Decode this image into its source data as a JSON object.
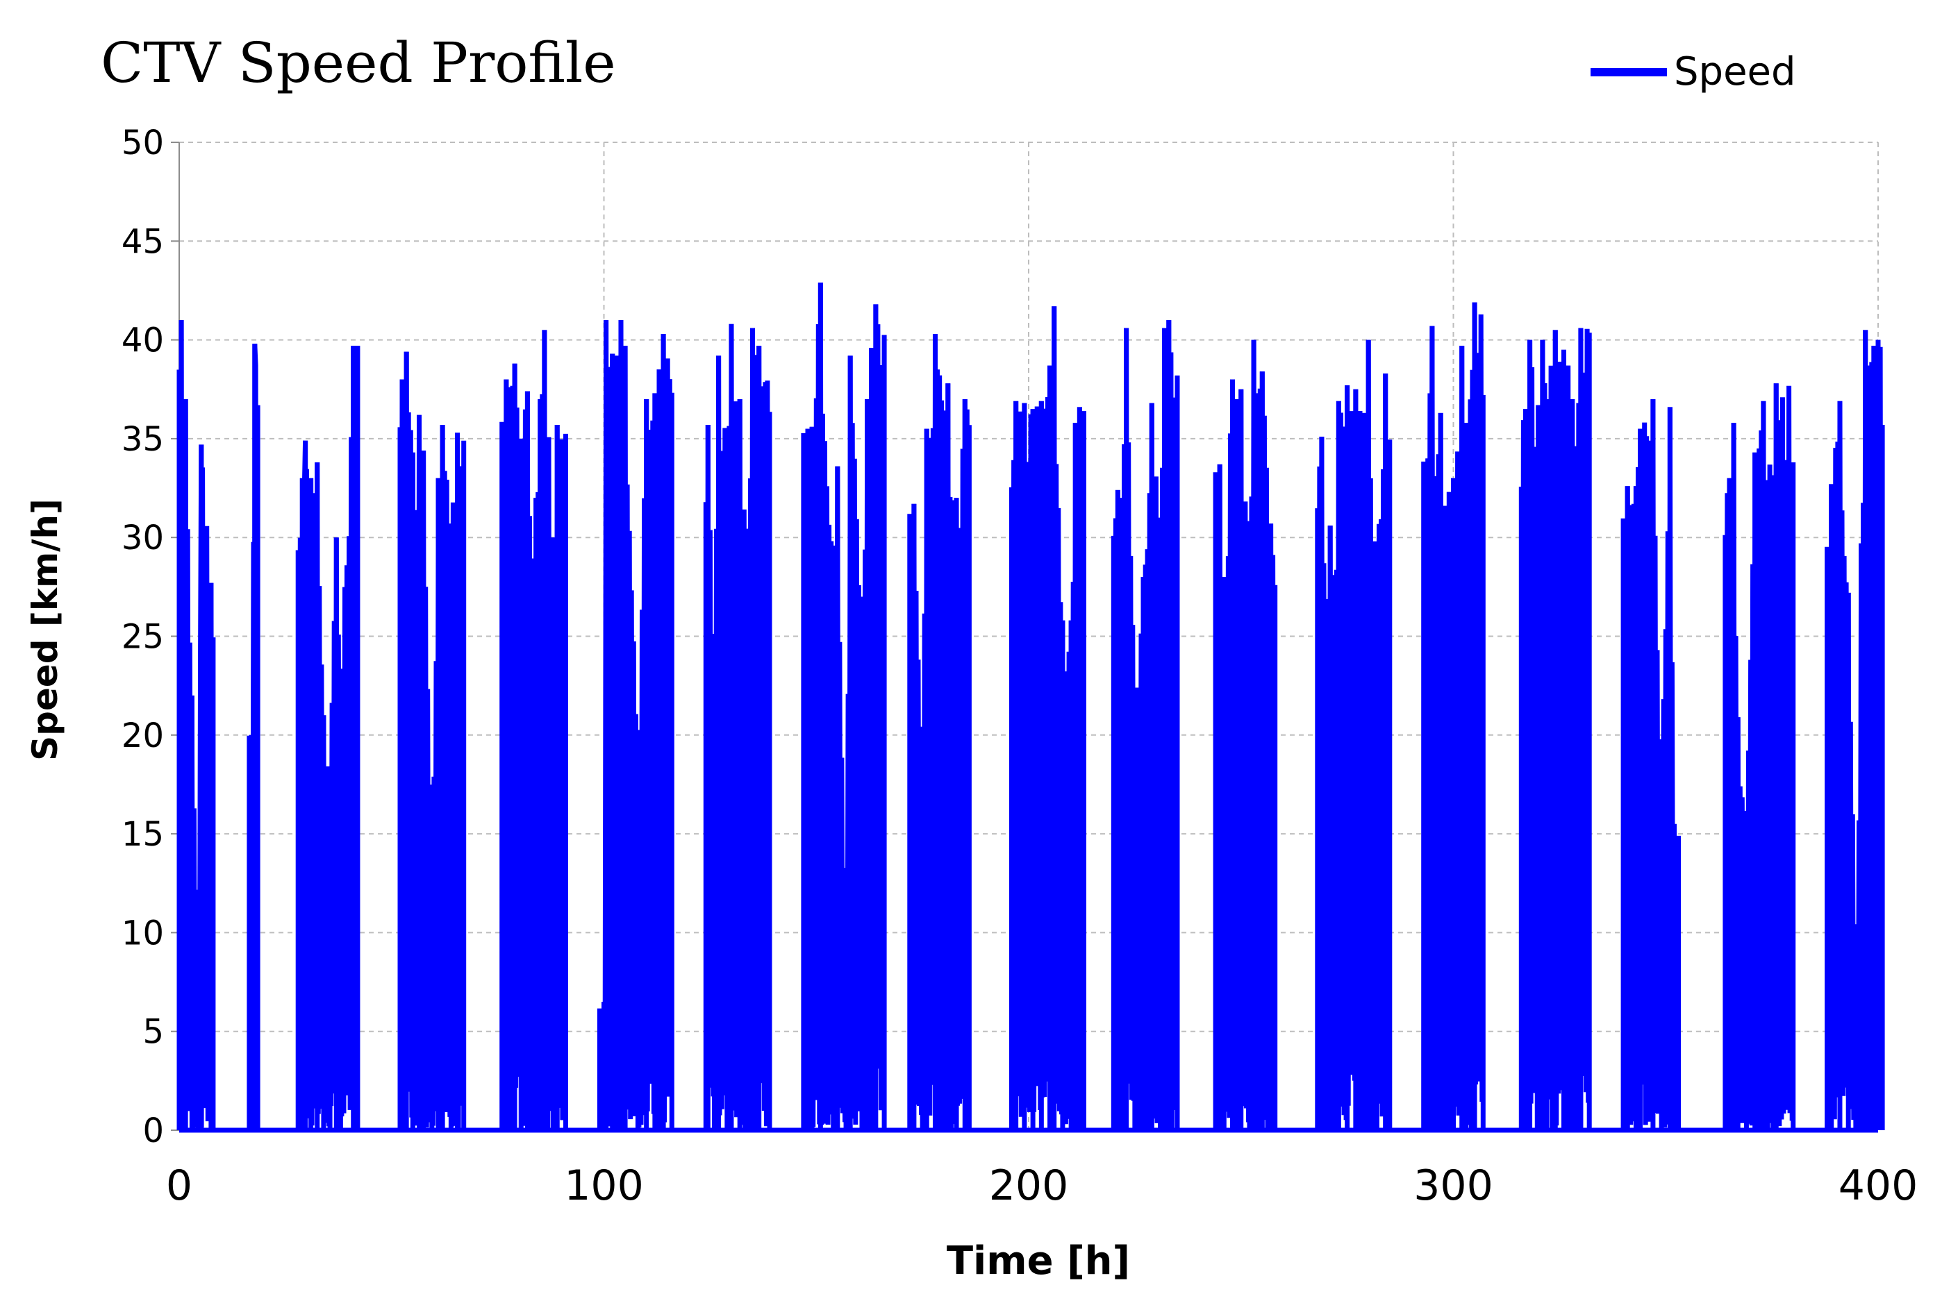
{
  "chart_data": {
    "type": "line",
    "title": "CTV Speed Profile",
    "xlabel": "Time [h]",
    "ylabel": "Speed [km/h]",
    "xlim": [
      0,
      400
    ],
    "ylim": [
      0,
      50
    ],
    "x_ticks": [
      "0",
      "100",
      "200",
      "300",
      "400"
    ],
    "y_ticks": [
      "0",
      "5",
      "10",
      "15",
      "20",
      "25",
      "30",
      "35",
      "40",
      "45",
      "50"
    ],
    "grid": true,
    "legend": {
      "position": "top-right",
      "entries": [
        "Speed"
      ]
    },
    "line_color": "#0000FF",
    "series": [
      {
        "name": "Speed",
        "operating_windows_h": [
          [
            0,
            8
          ],
          [
            16.5,
            18.5
          ],
          [
            28,
            42
          ],
          [
            52,
            67
          ],
          [
            76,
            91
          ],
          [
            99,
            116
          ],
          [
            124,
            139
          ],
          [
            147,
            166
          ],
          [
            172,
            186
          ],
          [
            196,
            213
          ],
          [
            220,
            235
          ],
          [
            244,
            258
          ],
          [
            268,
            285
          ],
          [
            293,
            307
          ],
          [
            316,
            332
          ],
          [
            340,
            353
          ],
          [
            364,
            380
          ],
          [
            388,
            401
          ]
        ],
        "peaks": [
          [
            0.5,
            41
          ],
          [
            1.5,
            37
          ],
          [
            3,
            22
          ],
          [
            4.5,
            8
          ],
          [
            5.2,
            34.7
          ],
          [
            7.5,
            27.7
          ],
          [
            17,
            20
          ],
          [
            17.8,
            39.8
          ],
          [
            29,
            33
          ],
          [
            29.7,
            34.9
          ],
          [
            31,
            33
          ],
          [
            32.5,
            33.8
          ],
          [
            34,
            21
          ],
          [
            35.5,
            18
          ],
          [
            37,
            30
          ],
          [
            38,
            23
          ],
          [
            41,
            39.7
          ],
          [
            42,
            39.7
          ],
          [
            52.5,
            38
          ],
          [
            53.5,
            39.4
          ],
          [
            55,
            34.3
          ],
          [
            56.5,
            36.2
          ],
          [
            57.5,
            34.4
          ],
          [
            59.5,
            14
          ],
          [
            61,
            33
          ],
          [
            62,
            35.7
          ],
          [
            64,
            30.7
          ],
          [
            65.5,
            35.3
          ],
          [
            77,
            38
          ],
          [
            78,
            37.6
          ],
          [
            79,
            38.8
          ],
          [
            80.5,
            35
          ],
          [
            82,
            37.4
          ],
          [
            83,
            26.7
          ],
          [
            84,
            32
          ],
          [
            85,
            37
          ],
          [
            86,
            40.5
          ],
          [
            88,
            30
          ],
          [
            89,
            35.7
          ],
          [
            100,
            6.5
          ],
          [
            100.5,
            41
          ],
          [
            102,
            39.3
          ],
          [
            103,
            39.2
          ],
          [
            104,
            41
          ],
          [
            105,
            39.7
          ],
          [
            108,
            17.5
          ],
          [
            110,
            37
          ],
          [
            112,
            37.3
          ],
          [
            113,
            38.5
          ],
          [
            114,
            40.3
          ],
          [
            124.5,
            35.7
          ],
          [
            126,
            22.5
          ],
          [
            127,
            39.2
          ],
          [
            129,
            35.4
          ],
          [
            130,
            40.8
          ],
          [
            132,
            37
          ],
          [
            134,
            30.2
          ],
          [
            135,
            40.6
          ],
          [
            136.5,
            39.7
          ],
          [
            148,
            35.5
          ],
          [
            149,
            35.6
          ],
          [
            151,
            42.9
          ],
          [
            154,
            28
          ],
          [
            155,
            33.6
          ],
          [
            157,
            7.8
          ],
          [
            158,
            39.2
          ],
          [
            161,
            27
          ],
          [
            162,
            37
          ],
          [
            163,
            39.6
          ],
          [
            164,
            41.8
          ],
          [
            173,
            31.7
          ],
          [
            175,
            20
          ],
          [
            176,
            35.5
          ],
          [
            178,
            40.3
          ],
          [
            179,
            38.2
          ],
          [
            181,
            37.8
          ],
          [
            183,
            32
          ],
          [
            185,
            37
          ],
          [
            197,
            36.9
          ],
          [
            199,
            36.8
          ],
          [
            201,
            36.5
          ],
          [
            203,
            36.9
          ],
          [
            205,
            38.7
          ],
          [
            206,
            41.7
          ],
          [
            208,
            25.8
          ],
          [
            210,
            25.8
          ],
          [
            211,
            35.8
          ],
          [
            212,
            36.6
          ],
          [
            221,
            32.4
          ],
          [
            222,
            32
          ],
          [
            223,
            40.6
          ],
          [
            225,
            22.4
          ],
          [
            226,
            22.4
          ],
          [
            227,
            28
          ],
          [
            228,
            29.4
          ],
          [
            229,
            36.8
          ],
          [
            231,
            31
          ],
          [
            232,
            40.6
          ],
          [
            233,
            41
          ],
          [
            245,
            33.7
          ],
          [
            246,
            28
          ],
          [
            248,
            38
          ],
          [
            249,
            37
          ],
          [
            250,
            37.5
          ],
          [
            252,
            29
          ],
          [
            253,
            40
          ],
          [
            254,
            37.3
          ],
          [
            255,
            38.4
          ],
          [
            257,
            30.7
          ],
          [
            269,
            35.1
          ],
          [
            270,
            24.5
          ],
          [
            271,
            30.6
          ],
          [
            272,
            26.7
          ],
          [
            273,
            36.9
          ],
          [
            275,
            37.7
          ],
          [
            277,
            37.5
          ],
          [
            278,
            36.4
          ],
          [
            279,
            36.3
          ],
          [
            280,
            40
          ],
          [
            281,
            29.8
          ],
          [
            282,
            29.8
          ],
          [
            284,
            38.3
          ],
          [
            294,
            34
          ],
          [
            295,
            40.7
          ],
          [
            296,
            33.1
          ],
          [
            297,
            36.3
          ],
          [
            298,
            31.6
          ],
          [
            299,
            32.3
          ],
          [
            300,
            33
          ],
          [
            302,
            39.7
          ],
          [
            303,
            35.8
          ],
          [
            305,
            41.9
          ],
          [
            317,
            36.5
          ],
          [
            318,
            40
          ],
          [
            320,
            36.7
          ],
          [
            321,
            40
          ],
          [
            322,
            37
          ],
          [
            324,
            40.5
          ],
          [
            326,
            39.5
          ],
          [
            327,
            38.7
          ],
          [
            328,
            37
          ],
          [
            329,
            33.2
          ],
          [
            330,
            40.6
          ],
          [
            341,
            32.6
          ],
          [
            343,
            32.6
          ],
          [
            344,
            35.5
          ],
          [
            347,
            37
          ],
          [
            349,
            17.6
          ],
          [
            351,
            36.6
          ],
          [
            352,
            15.5
          ],
          [
            365,
            33
          ],
          [
            366,
            35.8
          ],
          [
            367,
            20.9
          ],
          [
            369,
            14.9
          ],
          [
            371,
            34.3
          ],
          [
            372,
            34.5
          ],
          [
            373,
            36.9
          ],
          [
            374,
            32.9
          ],
          [
            376,
            37.8
          ],
          [
            389,
            32.7
          ],
          [
            391,
            36.9
          ],
          [
            393,
            27.2
          ],
          [
            395,
            5.7
          ],
          [
            396,
            29.7
          ],
          [
            397,
            40.5
          ],
          [
            398,
            38.7
          ],
          [
            399,
            39.7
          ],
          [
            400,
            40
          ]
        ]
      }
    ]
  }
}
